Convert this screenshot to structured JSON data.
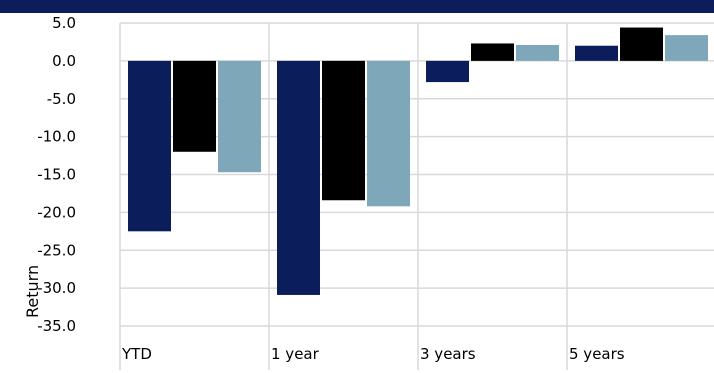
{
  "colors": {
    "header": "#0c1d5b",
    "series": [
      "#0c1d5b",
      "#000000",
      "#7ea8b9"
    ],
    "grid": "#d9d9d9"
  },
  "chart_data": {
    "type": "bar",
    "title": "",
    "xlabel": "",
    "ylabel": "Return",
    "categories": [
      "YTD",
      "1 year",
      "3 years",
      "5 years"
    ],
    "series": [
      {
        "values": [
          -22.5,
          -30.9,
          -2.8,
          2.0
        ]
      },
      {
        "values": [
          -12.0,
          -18.4,
          2.3,
          4.4
        ]
      },
      {
        "values": [
          -14.7,
          -19.2,
          2.1,
          3.4
        ]
      }
    ],
    "ylim": [
      -35.0,
      5.0
    ],
    "yticks": [
      "5.0",
      "0.0",
      "-5.0",
      "-10.0",
      "-15.0",
      "-20.0",
      "-25.0",
      "-30.0",
      "-35.0"
    ],
    "grid": true,
    "legend": "none"
  }
}
